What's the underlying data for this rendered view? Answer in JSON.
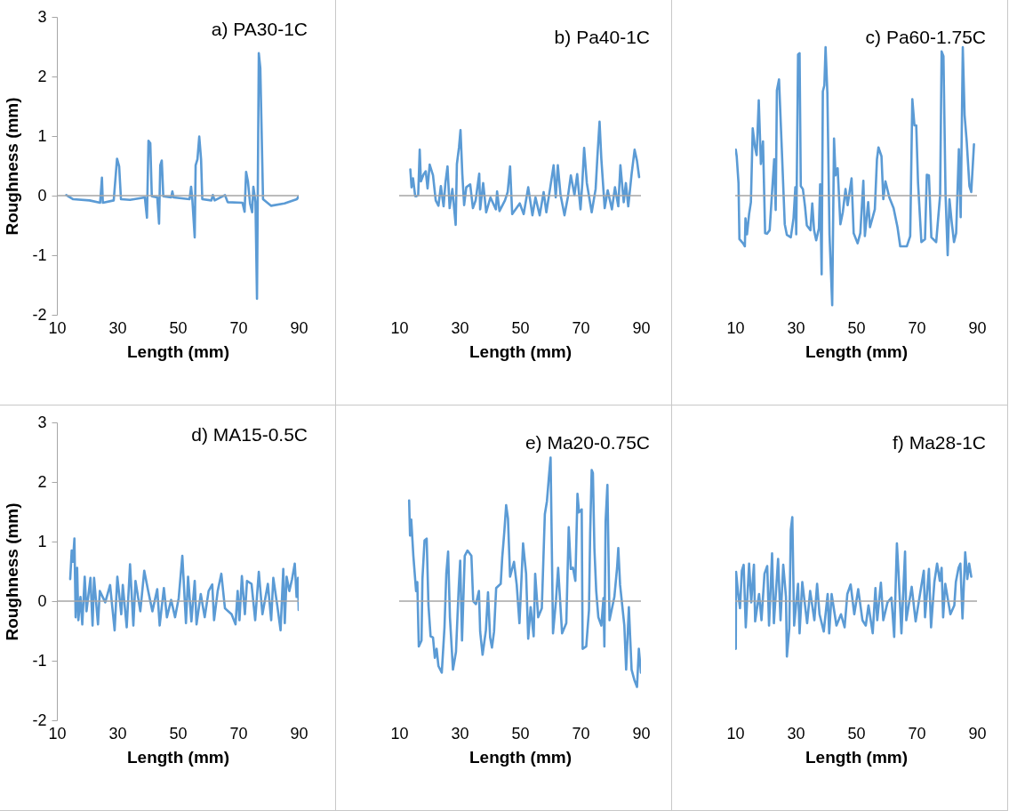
{
  "chart_data": [
    {
      "type": "line",
      "title": "a) PA30-1C",
      "xlabel": "Length (mm)",
      "ylabel": "Roughness (mm)",
      "xlim": [
        10,
        90
      ],
      "xticks": [
        10,
        30,
        50,
        70,
        90
      ],
      "ylim": [
        -2,
        3
      ],
      "yticks": [
        -2,
        -1,
        0,
        1,
        2,
        3
      ],
      "grid": false,
      "ref_lines": [
        {
          "axis": "y",
          "value": 0,
          "color": "#a6a6a6"
        }
      ],
      "series": [
        {
          "color": "#5b9bd5",
          "x": [
            13.1,
            15.4,
            20.8,
            24.3,
            24.9,
            25.2,
            28.8,
            29.9,
            30.6,
            31.2,
            34.2,
            39.1,
            39.8,
            40.3,
            40.9,
            41.4,
            43.2,
            43.8,
            44.2,
            44.7,
            45.2,
            47.8,
            48.2,
            48.6,
            53.9,
            54.4,
            54.8,
            55.6,
            55.9,
            56.5,
            57.1,
            57.7,
            58.1,
            61.1,
            61.6,
            62.2,
            65.6,
            66.5,
            71.4,
            72.1,
            72.6,
            73.2,
            73.9,
            74.6,
            75.0,
            75.7,
            76.2,
            76.8,
            77.3,
            78.2,
            80.9,
            85.3,
            89.4,
            90
          ],
          "values": [
            0.01,
            -0.06,
            -0.08,
            -0.12,
            0.3,
            -0.12,
            -0.08,
            0.62,
            0.49,
            -0.06,
            -0.07,
            -0.03,
            -0.37,
            0.92,
            0.88,
            -0.01,
            -0.03,
            -0.47,
            0.51,
            0.59,
            -0.01,
            -0.03,
            0.07,
            -0.03,
            -0.06,
            0.15,
            -0.06,
            -0.7,
            0.51,
            0.61,
            0.99,
            0.61,
            -0.06,
            -0.08,
            0.01,
            -0.08,
            0.01,
            -0.11,
            -0.12,
            -0.27,
            0.4,
            0.24,
            -0.13,
            -0.28,
            0.15,
            -0.11,
            -1.73,
            2.39,
            2.14,
            -0.06,
            -0.17,
            -0.13,
            -0.06,
            -0.01
          ]
        }
      ]
    },
    {
      "type": "line",
      "title": "b) Pa40-1C",
      "xlabel": "Length (mm)",
      "xlim": [
        10,
        90
      ],
      "xticks": [
        10,
        30,
        50,
        70,
        90
      ],
      "ylim": [
        -2,
        3
      ],
      "yticks": [
        -2,
        -1,
        0,
        1,
        2,
        3
      ],
      "tick_labels": "x",
      "grid": false,
      "ref_lines": [
        {
          "axis": "y",
          "value": 0,
          "color": "#a6a6a6"
        }
      ],
      "series": [
        {
          "color": "#5b9bd5",
          "x": [
            13.7,
            14.1,
            14.6,
            15.3,
            15.7,
            16.3,
            16.8,
            17.2,
            18.1,
            18.8,
            19.4,
            20.1,
            21.2,
            22.1,
            23.0,
            23.8,
            24.7,
            25.3,
            26.0,
            26.7,
            27.6,
            28.7,
            29.1,
            29.8,
            30.3,
            30.9,
            31.5,
            32.2,
            33.5,
            34.4,
            35.3,
            36.5,
            36.8,
            37.8,
            38.8,
            40.2,
            42.0,
            42.4,
            43.2,
            45.0,
            45.9,
            46.7,
            47.4,
            48.5,
            49.9,
            51.2,
            52.7,
            54.1,
            55.1,
            56.5,
            57.8,
            58.7,
            60.0,
            61.1,
            61.8,
            62.5,
            63.4,
            64.7,
            65.8,
            66.8,
            68.0,
            68.9,
            70.0,
            70.6,
            71.2,
            72.1,
            73.7,
            75.0,
            75.6,
            76.3,
            76.9,
            78.0,
            79.0,
            80.4,
            81.4,
            82.5,
            83.2,
            84.3,
            85.0,
            85.8,
            86.9,
            87.9,
            88.7,
            89.4
          ],
          "values": [
            0.44,
            0.14,
            0.29,
            -0.01,
            -0.01,
            0.01,
            0.77,
            0.24,
            0.36,
            0.41,
            0.12,
            0.52,
            0.34,
            -0.08,
            -0.17,
            0.16,
            -0.18,
            0.21,
            0.49,
            -0.21,
            0.11,
            -0.49,
            0.53,
            0.81,
            1.1,
            0.36,
            -0.16,
            0.14,
            0.19,
            -0.21,
            -0.08,
            0.37,
            -0.23,
            0.21,
            -0.28,
            -0.03,
            -0.23,
            0.07,
            -0.26,
            -0.08,
            0.06,
            0.49,
            -0.31,
            -0.23,
            -0.13,
            -0.31,
            0.14,
            -0.33,
            -0.03,
            -0.33,
            0.06,
            -0.28,
            0.14,
            0.51,
            -0.03,
            0.51,
            0.01,
            -0.33,
            -0.03,
            0.34,
            0.01,
            0.36,
            -0.23,
            0.21,
            0.8,
            0.21,
            -0.28,
            0.11,
            0.66,
            1.24,
            0.61,
            -0.21,
            0.09,
            -0.23,
            0.14,
            -0.18,
            0.51,
            -0.11,
            0.21,
            -0.18,
            0.36,
            0.77,
            0.58,
            0.31
          ]
        }
      ]
    },
    {
      "type": "line",
      "title": "c) Pa60-1.75C",
      "xlabel": "Length (mm)",
      "xlim": [
        10,
        90
      ],
      "xticks": [
        10,
        30,
        50,
        70,
        90
      ],
      "ylim": [
        -2,
        3
      ],
      "yticks": [
        -2,
        -1,
        0,
        1,
        2,
        3
      ],
      "tick_labels": "x",
      "grid": false,
      "ref_lines": [
        {
          "axis": "y",
          "value": 0,
          "color": "#a6a6a6"
        }
      ],
      "series": [
        {
          "color": "#5b9bd5",
          "x": [
            10.2,
            10.5,
            11.1,
            11.4,
            12.6,
            13.2,
            13.4,
            13.9,
            14.6,
            15.2,
            15.8,
            16.5,
            17.1,
            17.8,
            18.5,
            19.2,
            19.9,
            20.5,
            21.4,
            22.3,
            22.9,
            23.4,
            23.8,
            24.5,
            25.4,
            26.4,
            27.1,
            28.4,
            29.3,
            29.9,
            30.2,
            30.8,
            31.3,
            31.7,
            32.4,
            33.1,
            33.7,
            34.9,
            35.5,
            36.1,
            36.8,
            37.7,
            38.1,
            38.6,
            39.0,
            39.5,
            39.9,
            40.5,
            41.2,
            42.1,
            42.7,
            43.2,
            43.9,
            44.8,
            45.6,
            46.5,
            47.2,
            48.5,
            49.2,
            50.5,
            51.4,
            52.4,
            52.9,
            54.0,
            54.6,
            56.2,
            56.9,
            57.4,
            58.4,
            59.0,
            59.7,
            61.0,
            62.4,
            63.7,
            64.6,
            66.8,
            67.9,
            68.6,
            69.3,
            69.9,
            70.5,
            71.6,
            72.8,
            73.4,
            74.1,
            74.9,
            76.5,
            77.8,
            78.3,
            78.9,
            79.6,
            80.3,
            80.9,
            81.6,
            82.4,
            83.1,
            84.0,
            84.6,
            85.3,
            85.9,
            86.6,
            87.5,
            88.1,
            89.0
          ],
          "values": [
            0.77,
            0.66,
            0.21,
            -0.73,
            -0.8,
            -0.85,
            -0.38,
            -0.65,
            -0.31,
            -0.11,
            1.13,
            0.83,
            0.68,
            1.6,
            0.53,
            0.91,
            -0.63,
            -0.64,
            -0.58,
            0.14,
            0.61,
            -0.24,
            1.77,
            1.95,
            0.81,
            -0.48,
            -0.66,
            -0.7,
            -0.38,
            0.14,
            -0.65,
            2.37,
            2.39,
            0.16,
            0.11,
            -0.18,
            -0.5,
            -0.58,
            -0.13,
            -0.58,
            -0.75,
            -0.55,
            0.19,
            -1.32,
            1.75,
            1.85,
            2.49,
            1.72,
            -0.65,
            -1.84,
            0.96,
            0.34,
            0.46,
            -0.48,
            -0.28,
            0.11,
            -0.16,
            0.29,
            -0.63,
            -0.8,
            -0.63,
            0.25,
            -0.68,
            -0.11,
            -0.53,
            -0.23,
            0.61,
            0.81,
            0.66,
            -0.06,
            0.24,
            -0.03,
            -0.21,
            -0.53,
            -0.85,
            -0.85,
            -0.68,
            1.62,
            1.18,
            1.18,
            0.21,
            -0.78,
            -0.73,
            0.35,
            0.34,
            -0.7,
            -0.78,
            0.01,
            2.42,
            2.34,
            0.01,
            -1.0,
            -0.06,
            -0.43,
            -0.78,
            -0.63,
            0.78,
            -0.36,
            2.49,
            1.35,
            0.91,
            0.16,
            0.06,
            0.86
          ]
        }
      ]
    },
    {
      "type": "line",
      "title": "d) MA15-0.5C",
      "xlabel": "Length (mm)",
      "ylabel": "Roughness (mm)",
      "xlim": [
        10,
        90
      ],
      "xticks": [
        10,
        30,
        50,
        70,
        90
      ],
      "ylim": [
        -2,
        3
      ],
      "yticks": [
        -2,
        -1,
        0,
        1,
        2,
        3
      ],
      "grid": false,
      "ref_lines": [
        {
          "axis": "y",
          "value": 0,
          "color": "#a6a6a6"
        }
      ],
      "series": [
        {
          "color": "#5b9bd5",
          "x": [
            14.4,
            14.9,
            15.3,
            15.8,
            16.2,
            16.7,
            17.1,
            17.8,
            18.4,
            19.2,
            19.8,
            21.1,
            21.8,
            22.3,
            23.6,
            24.2,
            26.0,
            27.6,
            29.1,
            30.0,
            31.3,
            31.8,
            33.1,
            34.2,
            35.3,
            36.0,
            37.6,
            38.9,
            40.2,
            41.6,
            43.2,
            44.0,
            45.4,
            46.4,
            47.8,
            49.1,
            50.3,
            51.5,
            52.7,
            53.4,
            54.5,
            55.6,
            56.2,
            57.6,
            58.9,
            60.2,
            61.4,
            62.0,
            63.2,
            64.4,
            65.6,
            67.8,
            69.1,
            69.8,
            70.4,
            71.2,
            72.2,
            72.9,
            74.4,
            75.6,
            76.8,
            78.0,
            79.8,
            80.9,
            81.6,
            82.9,
            84.0,
            84.9,
            85.4,
            86.0,
            86.9,
            87.8,
            88.7,
            89.3,
            89.8,
            90
          ],
          "values": [
            0.37,
            0.85,
            0.66,
            1.05,
            -0.27,
            0.56,
            -0.32,
            0.07,
            -0.39,
            0.41,
            -0.17,
            0.39,
            -0.41,
            0.39,
            -0.39,
            0.17,
            -0.02,
            0.27,
            -0.49,
            0.41,
            -0.22,
            0.27,
            -0.44,
            0.62,
            -0.41,
            0.34,
            -0.17,
            0.51,
            0.17,
            -0.17,
            0.2,
            -0.41,
            0.22,
            -0.27,
            0.02,
            -0.27,
            0.05,
            0.76,
            -0.37,
            0.41,
            -0.34,
            0.34,
            -0.39,
            0.12,
            -0.27,
            0.17,
            0.28,
            -0.32,
            0.17,
            0.46,
            -0.12,
            -0.22,
            -0.39,
            0.17,
            -0.32,
            0.42,
            -0.22,
            0.34,
            0.29,
            -0.32,
            0.49,
            -0.22,
            0.29,
            -0.32,
            0.39,
            -0.07,
            -0.49,
            0.54,
            -0.37,
            0.41,
            0.17,
            0.37,
            0.63,
            0.07,
            0.39,
            -0.15
          ]
        }
      ]
    },
    {
      "type": "line",
      "title": "e) Ma20-0.75C",
      "xlabel": "Length (mm)",
      "xlim": [
        10,
        90
      ],
      "xticks": [
        10,
        30,
        50,
        70,
        90
      ],
      "ylim": [
        -2,
        3
      ],
      "yticks": [
        -2,
        -1,
        0,
        1,
        2,
        3
      ],
      "tick_labels": "x",
      "grid": false,
      "ref_lines": [
        {
          "axis": "y",
          "value": 0,
          "color": "#a6a6a6"
        }
      ],
      "series": [
        {
          "color": "#5b9bd5",
          "x": [
            13.3,
            13.6,
            14.0,
            14.7,
            15.6,
            16.0,
            16.5,
            17.4,
            17.7,
            18.4,
            19.1,
            19.7,
            20.4,
            21.2,
            21.8,
            22.4,
            23.0,
            24.1,
            25.0,
            25.6,
            26.2,
            26.8,
            27.8,
            28.8,
            29.7,
            30.2,
            30.8,
            31.7,
            32.6,
            33.9,
            34.5,
            35.4,
            36.4,
            36.8,
            37.6,
            38.7,
            39.4,
            40.1,
            40.7,
            41.4,
            42.1,
            43.6,
            44.1,
            44.8,
            45.4,
            46.0,
            46.7,
            48.0,
            48.9,
            49.8,
            51.0,
            52.0,
            52.7,
            53.5,
            54.5,
            55.0,
            56.0,
            57.2,
            58.2,
            58.9,
            59.6,
            60.1,
            60.9,
            61.9,
            62.6,
            63.9,
            65.3,
            66.1,
            66.8,
            67.5,
            68.3,
            69.0,
            69.5,
            70.4,
            70.7,
            71.9,
            72.8,
            73.2,
            73.7,
            74.1,
            74.6,
            75.2,
            75.9,
            76.9,
            77.6,
            77.9,
            78.3,
            78.9,
            79.6,
            81.2,
            82.1,
            82.5,
            83.1,
            84.5,
            85.1,
            86.0,
            86.9,
            87.8,
            88.7,
            89.3,
            90
          ],
          "values": [
            1.69,
            1.1,
            1.37,
            0.76,
            0.17,
            0.32,
            -0.76,
            -0.66,
            0.37,
            1.02,
            1.05,
            -0.07,
            -0.59,
            -0.61,
            -0.95,
            -0.8,
            -1.09,
            -1.2,
            -0.44,
            0.46,
            0.83,
            -0.27,
            -1.15,
            -0.85,
            0.22,
            0.68,
            -0.66,
            0.76,
            0.85,
            0.76,
            0.0,
            -0.05,
            0.17,
            -0.51,
            -0.9,
            -0.49,
            0.15,
            -0.61,
            -0.78,
            -0.51,
            0.22,
            0.29,
            0.73,
            1.17,
            1.61,
            1.39,
            0.41,
            0.66,
            0.27,
            -0.37,
            0.97,
            0.46,
            -0.63,
            -0.1,
            -0.59,
            0.46,
            -0.27,
            -0.12,
            1.46,
            1.68,
            2.12,
            2.41,
            -0.54,
            0.02,
            0.56,
            -0.54,
            -0.37,
            1.24,
            0.54,
            0.56,
            0.34,
            1.8,
            1.49,
            1.54,
            -0.8,
            -0.76,
            -0.15,
            1.15,
            2.2,
            2.15,
            0.88,
            0.17,
            -0.27,
            -0.41,
            0.05,
            -0.76,
            1.34,
            1.95,
            -0.32,
            0.07,
            0.56,
            0.89,
            0.27,
            -0.41,
            -1.15,
            -0.1,
            -1.15,
            -1.32,
            -1.44,
            -0.8,
            -1.2
          ]
        }
      ]
    },
    {
      "type": "line",
      "title": "f) Ma28-1C",
      "xlabel": "Length (mm)",
      "xlim": [
        10,
        90
      ],
      "xticks": [
        10,
        30,
        50,
        70,
        90
      ],
      "ylim": [
        -2,
        3
      ],
      "yticks": [
        -2,
        -1,
        0,
        1,
        2,
        3
      ],
      "tick_labels": "x",
      "grid": false,
      "ref_lines": [
        {
          "axis": "y",
          "value": 0,
          "color": "#a6a6a6"
        }
      ],
      "series": [
        {
          "color": "#5b9bd5",
          "x": [
            10.2,
            10.3,
            10.9,
            11.6,
            12.2,
            12.8,
            13.5,
            14.6,
            15.3,
            16.2,
            16.6,
            17.9,
            18.7,
            19.7,
            20.6,
            21.2,
            22.2,
            22.8,
            24.2,
            25.0,
            25.9,
            26.8,
            27.1,
            27.9,
            28.4,
            28.9,
            29.5,
            30.8,
            31.3,
            32.2,
            33.8,
            34.8,
            36.2,
            37.1,
            37.9,
            39.3,
            40.6,
            41.1,
            41.9,
            43.5,
            45.0,
            46.2,
            47.1,
            48.2,
            49.4,
            50.7,
            52.1,
            53.2,
            54.1,
            55.5,
            56.4,
            57.0,
            58.2,
            59.0,
            60.4,
            61.7,
            62.6,
            63.5,
            64.0,
            65.0,
            66.2,
            66.6,
            68.4,
            69.7,
            71.0,
            72.4,
            72.8,
            74.1,
            74.8,
            75.9,
            76.8,
            77.7,
            78.3,
            78.8,
            79.5,
            80.3,
            81.2,
            82.5,
            83.0,
            83.9,
            84.5,
            85.2,
            86.1,
            86.8,
            87.4,
            88.1
          ],
          "values": [
            -0.8,
            0.49,
            0.17,
            -0.12,
            0.51,
            0.61,
            -0.44,
            0.63,
            -0.02,
            0.61,
            -0.34,
            0.12,
            -0.32,
            0.46,
            0.59,
            -0.41,
            0.8,
            -0.37,
            0.71,
            -0.32,
            0.61,
            0.07,
            -0.93,
            -0.46,
            1.2,
            1.41,
            -0.41,
            0.29,
            -0.54,
            0.32,
            -0.37,
            0.17,
            -0.32,
            0.29,
            -0.22,
            -0.51,
            0.12,
            -0.54,
            0.12,
            -0.41,
            -0.22,
            -0.44,
            0.12,
            0.28,
            -0.22,
            0.2,
            -0.32,
            -0.41,
            -0.07,
            -0.54,
            0.22,
            -0.32,
            0.31,
            -0.32,
            -0.02,
            0.06,
            -0.6,
            0.97,
            0.51,
            -0.54,
            0.83,
            -0.32,
            0.24,
            -0.34,
            0.07,
            0.51,
            -0.27,
            0.54,
            -0.44,
            0.32,
            0.63,
            0.34,
            0.56,
            -0.27,
            0.29,
            0.05,
            -0.22,
            -0.07,
            0.32,
            0.56,
            0.63,
            -0.29,
            0.82,
            0.37,
            0.63,
            0.41
          ]
        }
      ]
    }
  ]
}
